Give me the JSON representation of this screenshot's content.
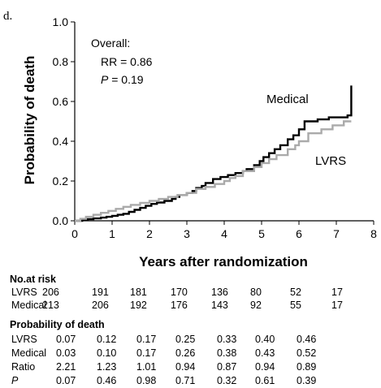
{
  "panel_label": "d.",
  "chart_data": {
    "type": "line",
    "xlabel": "Years after randomization",
    "ylabel": "Probability of death",
    "xlim": [
      0,
      8
    ],
    "ylim": [
      0,
      1.0
    ],
    "x_ticks": [
      "0",
      "1",
      "2",
      "3",
      "4",
      "5",
      "6",
      "7",
      "8"
    ],
    "y_ticks": [
      "0.0",
      "0.2",
      "0.4",
      "0.6",
      "0.8",
      "1.0"
    ],
    "grid": false,
    "annotation": {
      "overall_label": "Overall:",
      "rr_text": "RR = 0.86",
      "p_symbol": "P",
      "p_text": " = 0.19"
    },
    "series": [
      {
        "name": "Medical",
        "color": "#000000",
        "step": true,
        "points": [
          [
            0,
            0
          ],
          [
            0.2,
            0.004
          ],
          [
            0.35,
            0.008
          ],
          [
            0.5,
            0.012
          ],
          [
            0.7,
            0.016
          ],
          [
            0.85,
            0.02
          ],
          [
            1.0,
            0.025
          ],
          [
            1.15,
            0.03
          ],
          [
            1.3,
            0.035
          ],
          [
            1.45,
            0.045
          ],
          [
            1.6,
            0.055
          ],
          [
            1.75,
            0.065
          ],
          [
            1.9,
            0.075
          ],
          [
            2.05,
            0.085
          ],
          [
            2.2,
            0.092
          ],
          [
            2.4,
            0.1
          ],
          [
            2.6,
            0.11
          ],
          [
            2.7,
            0.12
          ],
          [
            2.8,
            0.13
          ],
          [
            3.0,
            0.14
          ],
          [
            3.15,
            0.15
          ],
          [
            3.25,
            0.165
          ],
          [
            3.4,
            0.175
          ],
          [
            3.5,
            0.19
          ],
          [
            3.7,
            0.21
          ],
          [
            3.9,
            0.22
          ],
          [
            4.1,
            0.23
          ],
          [
            4.3,
            0.24
          ],
          [
            4.5,
            0.25
          ],
          [
            4.6,
            0.26
          ],
          [
            4.8,
            0.28
          ],
          [
            4.95,
            0.3
          ],
          [
            5.05,
            0.32
          ],
          [
            5.2,
            0.34
          ],
          [
            5.35,
            0.36
          ],
          [
            5.5,
            0.38
          ],
          [
            5.7,
            0.41
          ],
          [
            5.85,
            0.43
          ],
          [
            6.0,
            0.46
          ],
          [
            6.15,
            0.5
          ],
          [
            6.5,
            0.51
          ],
          [
            6.8,
            0.52
          ],
          [
            7.3,
            0.53
          ],
          [
            7.4,
            0.68
          ]
        ]
      },
      {
        "name": "LVRS",
        "color": "#aaaaaa",
        "step": true,
        "points": [
          [
            0,
            0
          ],
          [
            0.15,
            0.01
          ],
          [
            0.3,
            0.02
          ],
          [
            0.5,
            0.03
          ],
          [
            0.7,
            0.04
          ],
          [
            0.9,
            0.05
          ],
          [
            1.1,
            0.06
          ],
          [
            1.3,
            0.07
          ],
          [
            1.5,
            0.08
          ],
          [
            1.75,
            0.09
          ],
          [
            2.0,
            0.1
          ],
          [
            2.25,
            0.11
          ],
          [
            2.5,
            0.12
          ],
          [
            2.75,
            0.13
          ],
          [
            3.0,
            0.14
          ],
          [
            3.25,
            0.16
          ],
          [
            3.5,
            0.17
          ],
          [
            3.75,
            0.185
          ],
          [
            4.0,
            0.2
          ],
          [
            4.15,
            0.215
          ],
          [
            4.3,
            0.225
          ],
          [
            4.5,
            0.25
          ],
          [
            4.8,
            0.27
          ],
          [
            5.0,
            0.29
          ],
          [
            5.2,
            0.31
          ],
          [
            5.4,
            0.33
          ],
          [
            5.7,
            0.36
          ],
          [
            5.9,
            0.38
          ],
          [
            6.0,
            0.4
          ],
          [
            6.25,
            0.44
          ],
          [
            6.6,
            0.46
          ],
          [
            6.9,
            0.48
          ],
          [
            7.2,
            0.5
          ],
          [
            7.4,
            0.5
          ]
        ]
      }
    ],
    "series_labels": [
      {
        "name": "Medical",
        "text": "Medical"
      },
      {
        "name": "LVRS",
        "text": "LVRS"
      }
    ]
  },
  "at_risk": {
    "heading": "No.at risk",
    "rows": [
      {
        "label": "LVRS",
        "values": [
          "206",
          "191",
          "181",
          "170",
          "136",
          "80",
          "52",
          "17"
        ]
      },
      {
        "label": "Medical",
        "values": [
          "213",
          "206",
          "192",
          "176",
          "143",
          "92",
          "55",
          "17"
        ]
      }
    ]
  },
  "prob_death": {
    "heading": "Probability of death",
    "rows": [
      {
        "label": "LVRS",
        "italic": false,
        "values": [
          "0.07",
          "0.12",
          "0.17",
          "0.25",
          "0.33",
          "0.40",
          "0.46"
        ]
      },
      {
        "label": "Medical",
        "italic": false,
        "values": [
          "0.03",
          "0.10",
          "0.17",
          "0.26",
          "0.38",
          "0.43",
          "0.52"
        ]
      },
      {
        "label": "Ratio",
        "italic": false,
        "values": [
          "2.21",
          "1.23",
          "1.01",
          "0.94",
          "0.87",
          "0.94",
          "0.89"
        ]
      },
      {
        "label": "P",
        "italic": true,
        "values": [
          "0.07",
          "0.46",
          "0.98",
          "0.71",
          "0.32",
          "0.61",
          "0.39"
        ]
      }
    ]
  }
}
